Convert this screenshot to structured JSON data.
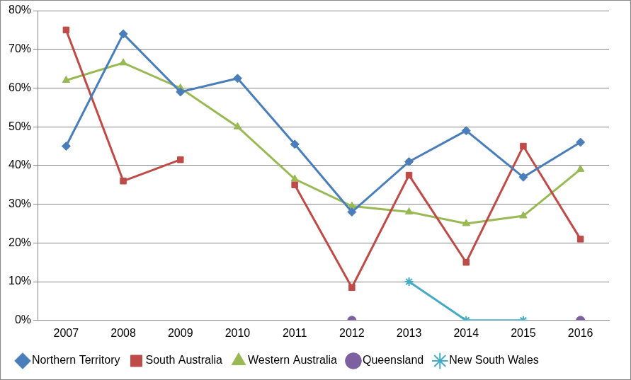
{
  "chart_data": {
    "type": "line",
    "categories": [
      "2007",
      "2008",
      "2009",
      "2010",
      "2011",
      "2012",
      "2013",
      "2014",
      "2015",
      "2016"
    ],
    "series": [
      {
        "name": "Northern Territory",
        "color": "#4a7ebb",
        "marker": "diamond",
        "values": [
          45,
          74,
          59,
          62.5,
          45.5,
          28,
          41,
          49,
          37,
          46
        ]
      },
      {
        "name": "South Australia",
        "color": "#be4b48",
        "marker": "square",
        "values": [
          75,
          36,
          41.5,
          null,
          35,
          8.5,
          37.5,
          15,
          45,
          21
        ]
      },
      {
        "name": "Western Australia",
        "color": "#98b954",
        "marker": "triangle",
        "values": [
          62,
          66.5,
          60,
          50,
          36.5,
          29.5,
          28,
          25,
          27,
          39
        ]
      },
      {
        "name": "Queensland",
        "color": "#7d60a0",
        "marker": "circle",
        "values": [
          null,
          null,
          null,
          null,
          null,
          0,
          null,
          null,
          null,
          0
        ]
      },
      {
        "name": "New South Wales",
        "color": "#46aac5",
        "marker": "star",
        "values": [
          null,
          null,
          null,
          null,
          null,
          null,
          10,
          0,
          0,
          null
        ]
      }
    ],
    "ylim": [
      0,
      80
    ],
    "yticks": [
      {
        "value": 0,
        "label": "0%"
      },
      {
        "value": 10,
        "label": "10%"
      },
      {
        "value": 20,
        "label": "20%"
      },
      {
        "value": 30,
        "label": "30%"
      },
      {
        "value": 40,
        "label": "40%"
      },
      {
        "value": 50,
        "label": "50%"
      },
      {
        "value": 60,
        "label": "60%"
      },
      {
        "value": 70,
        "label": "70%"
      },
      {
        "value": 80,
        "label": "80%"
      }
    ],
    "grid": true,
    "legend": "bottom"
  }
}
